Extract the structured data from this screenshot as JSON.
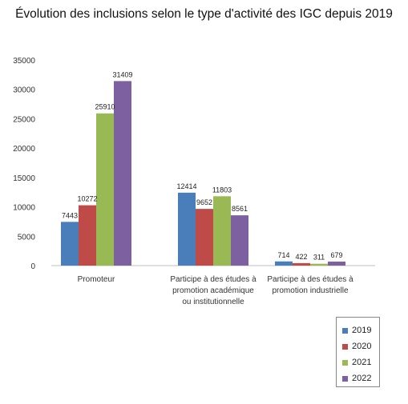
{
  "chart_data": {
    "type": "bar",
    "title": "Évolution des inclusions selon le type d'activité des IGC depuis 2019",
    "categories": [
      [
        "Promoteur"
      ],
      [
        "Participe à des études à",
        "promotion académique",
        "ou institutionnelle"
      ],
      [
        "Participe à des études à",
        "promotion industrielle"
      ]
    ],
    "series": [
      {
        "name": "2019",
        "color": "#4A7EBB",
        "values": [
          7443,
          12414,
          714
        ]
      },
      {
        "name": "2020",
        "color": "#BE4B48",
        "values": [
          10272,
          9652,
          422
        ]
      },
      {
        "name": "2021",
        "color": "#98B954",
        "values": [
          25910,
          11803,
          311
        ]
      },
      {
        "name": "2022",
        "color": "#7D60A0",
        "values": [
          31409,
          8561,
          679
        ]
      }
    ],
    "yticks": [
      0,
      5000,
      10000,
      15000,
      20000,
      25000,
      30000,
      35000
    ],
    "ylim": [
      0,
      35000
    ],
    "grid": false,
    "legend_position": "bottom-right"
  }
}
